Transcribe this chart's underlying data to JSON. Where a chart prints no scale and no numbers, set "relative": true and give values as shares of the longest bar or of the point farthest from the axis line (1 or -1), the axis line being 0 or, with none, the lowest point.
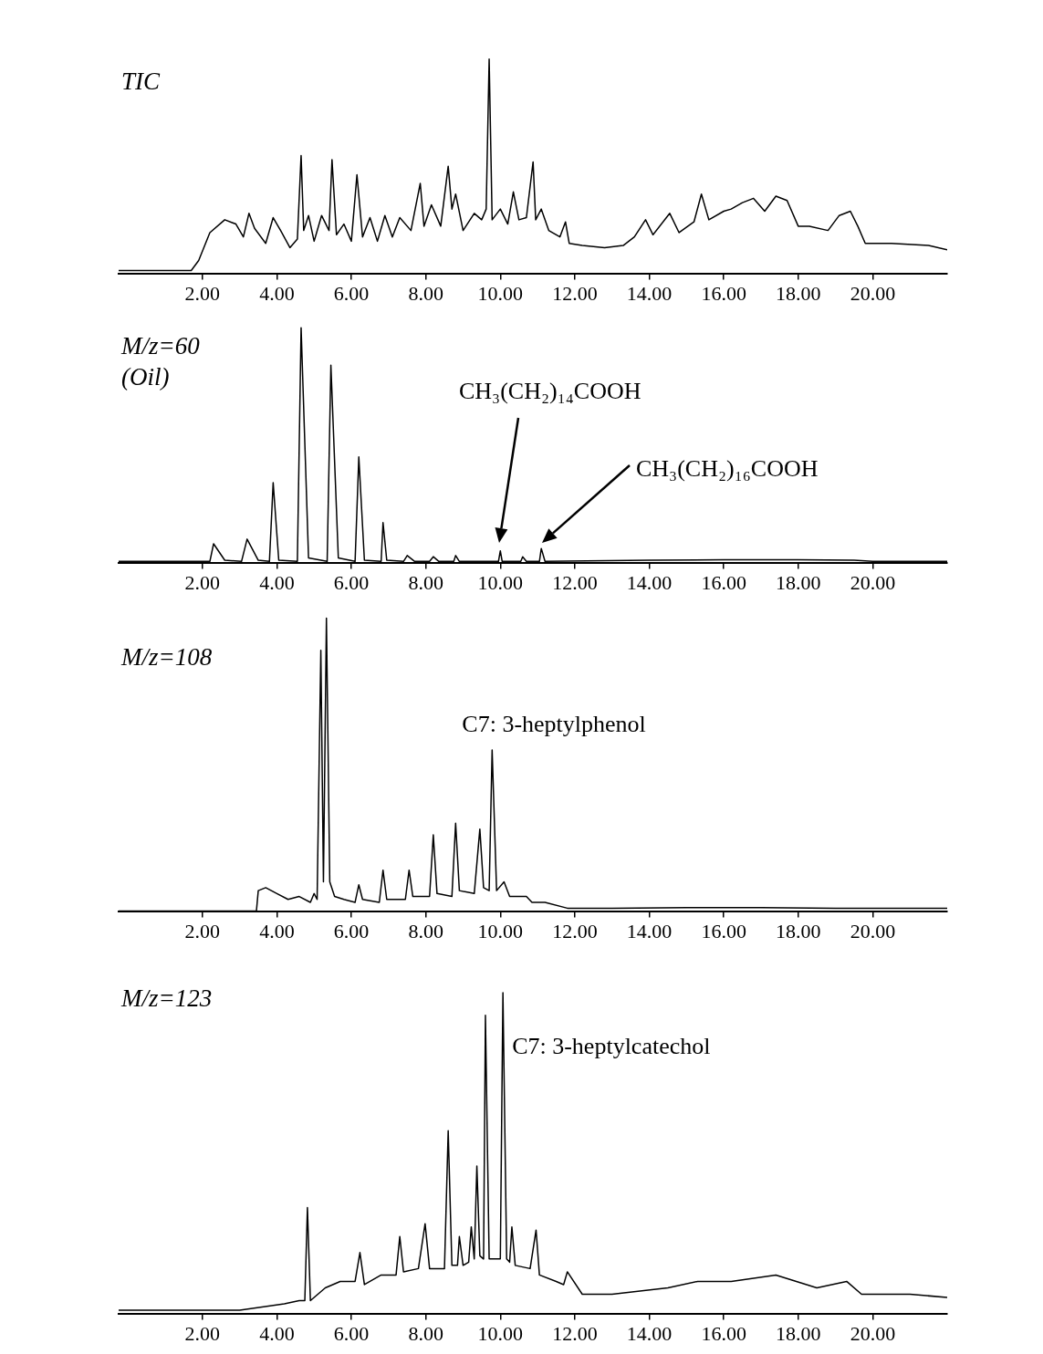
{
  "chart_data": [
    {
      "type": "line",
      "title": "TIC",
      "relative": true,
      "color": "#000000",
      "xlim": [
        -0.25,
        22
      ],
      "xticks": [
        {
          "value": 2,
          "label": "2.00"
        },
        {
          "value": 4,
          "label": "4.00"
        },
        {
          "value": 6,
          "label": "6.00"
        },
        {
          "value": 8,
          "label": "8.00"
        },
        {
          "value": 10,
          "label": "10.00"
        },
        {
          "value": 12,
          "label": "12.00"
        },
        {
          "value": 14,
          "label": "14.00"
        },
        {
          "value": 16,
          "label": "16.00"
        },
        {
          "value": 18,
          "label": "18.00"
        },
        {
          "value": 20,
          "label": "20.00"
        }
      ],
      "x": [
        -0.25,
        1.7,
        1.9,
        2.2,
        2.6,
        2.9,
        3.1,
        3.25,
        3.4,
        3.7,
        3.9,
        4.1,
        4.35,
        4.55,
        4.65,
        4.72,
        4.85,
        5.0,
        5.2,
        5.4,
        5.48,
        5.6,
        5.8,
        6.0,
        6.15,
        6.3,
        6.5,
        6.7,
        6.9,
        7.1,
        7.3,
        7.6,
        7.85,
        7.95,
        8.15,
        8.4,
        8.6,
        8.7,
        8.8,
        9.0,
        9.3,
        9.5,
        9.62,
        9.7,
        9.78,
        10.0,
        10.2,
        10.35,
        10.5,
        10.7,
        10.88,
        10.95,
        11.1,
        11.3,
        11.6,
        11.75,
        11.85,
        12.2,
        12.8,
        13.3,
        13.6,
        13.9,
        14.1,
        14.55,
        14.8,
        15.2,
        15.4,
        15.6,
        16.0,
        16.2,
        16.5,
        16.8,
        17.1,
        17.4,
        17.7,
        18.0,
        18.3,
        18.8,
        19.1,
        19.4,
        19.6,
        19.8,
        20.5,
        21.5,
        22.0
      ],
      "values": [
        0.013,
        0.013,
        0.06,
        0.19,
        0.25,
        0.23,
        0.17,
        0.28,
        0.21,
        0.14,
        0.26,
        0.2,
        0.12,
        0.16,
        0.55,
        0.2,
        0.27,
        0.15,
        0.27,
        0.2,
        0.53,
        0.18,
        0.23,
        0.15,
        0.46,
        0.17,
        0.26,
        0.15,
        0.27,
        0.17,
        0.26,
        0.2,
        0.42,
        0.22,
        0.32,
        0.22,
        0.5,
        0.3,
        0.37,
        0.2,
        0.28,
        0.25,
        0.3,
        1.0,
        0.25,
        0.3,
        0.23,
        0.38,
        0.25,
        0.26,
        0.52,
        0.25,
        0.3,
        0.2,
        0.17,
        0.24,
        0.14,
        0.13,
        0.12,
        0.13,
        0.17,
        0.25,
        0.18,
        0.28,
        0.19,
        0.24,
        0.37,
        0.25,
        0.29,
        0.3,
        0.33,
        0.35,
        0.29,
        0.36,
        0.34,
        0.22,
        0.22,
        0.2,
        0.27,
        0.29,
        0.22,
        0.14,
        0.14,
        0.13,
        0.11
      ]
    },
    {
      "type": "line",
      "title": "M/z=60",
      "subtitle": "(Oil)",
      "relative": true,
      "color": "#000000",
      "xlim": [
        -0.25,
        22
      ],
      "xticks": [
        {
          "value": 2,
          "label": "2.00"
        },
        {
          "value": 4,
          "label": "4.00"
        },
        {
          "value": 6,
          "label": "6.00"
        },
        {
          "value": 8,
          "label": "8.00"
        },
        {
          "value": 10,
          "label": "10.00"
        },
        {
          "value": 12,
          "label": "12.00"
        },
        {
          "value": 14,
          "label": "14.00"
        },
        {
          "value": 16,
          "label": "16.00"
        },
        {
          "value": 18,
          "label": "18.00"
        },
        {
          "value": 20,
          "label": "20.00"
        }
      ],
      "x": [
        -0.25,
        2.2,
        2.3,
        2.6,
        3.05,
        3.2,
        3.5,
        3.8,
        3.9,
        4.05,
        4.55,
        4.65,
        4.85,
        5.35,
        5.45,
        5.65,
        6.1,
        6.2,
        6.35,
        6.8,
        6.85,
        6.95,
        7.4,
        7.5,
        7.7,
        8.1,
        8.2,
        8.35,
        8.75,
        8.8,
        8.9,
        9.95,
        10.0,
        10.05,
        10.55,
        10.6,
        10.7,
        11.05,
        11.1,
        11.2,
        14.0,
        16.0,
        18.0,
        19.5,
        20.0,
        22.0
      ],
      "values": [
        0.005,
        0.005,
        0.08,
        0.01,
        0.005,
        0.1,
        0.01,
        0.005,
        0.34,
        0.01,
        0.005,
        1.0,
        0.02,
        0.005,
        0.84,
        0.02,
        0.005,
        0.45,
        0.01,
        0.005,
        0.17,
        0.01,
        0.005,
        0.03,
        0.005,
        0.005,
        0.025,
        0.005,
        0.005,
        0.03,
        0.005,
        0.005,
        0.05,
        0.005,
        0.005,
        0.025,
        0.005,
        0.005,
        0.06,
        0.005,
        0.01,
        0.012,
        0.012,
        0.01,
        0.005,
        0.005
      ],
      "annotations": [
        "CH₃(CH₂)₁₄COOH",
        "CH₃(CH₂)₁₆COOH"
      ]
    },
    {
      "type": "line",
      "title": "M/z=108",
      "relative": true,
      "color": "#000000",
      "xlim": [
        -0.25,
        22
      ],
      "xticks": [
        {
          "value": 2,
          "label": "2.00"
        },
        {
          "value": 4,
          "label": "4.00"
        },
        {
          "value": 6,
          "label": "6.00"
        },
        {
          "value": 8,
          "label": "8.00"
        },
        {
          "value": 10,
          "label": "10.00"
        },
        {
          "value": 12,
          "label": "12.00"
        },
        {
          "value": 14,
          "label": "14.00"
        },
        {
          "value": 16,
          "label": "16.00"
        },
        {
          "value": 18,
          "label": "18.00"
        },
        {
          "value": 20,
          "label": "20.00"
        }
      ],
      "x": [
        -0.25,
        3.45,
        3.5,
        3.7,
        4.0,
        4.3,
        4.6,
        4.9,
        5.0,
        5.08,
        5.18,
        5.25,
        5.33,
        5.42,
        5.55,
        5.8,
        6.1,
        6.2,
        6.3,
        6.75,
        6.85,
        6.95,
        7.45,
        7.55,
        7.65,
        8.1,
        8.2,
        8.3,
        8.7,
        8.8,
        8.9,
        9.3,
        9.45,
        9.55,
        9.7,
        9.78,
        9.9,
        10.1,
        10.25,
        10.4,
        10.55,
        10.7,
        10.85,
        11.2,
        11.8,
        13.0,
        15.0,
        17.0,
        19.0,
        22.0
      ],
      "values": [
        0.0,
        0.0,
        0.07,
        0.08,
        0.06,
        0.04,
        0.05,
        0.03,
        0.06,
        0.04,
        0.89,
        0.1,
        1.0,
        0.1,
        0.05,
        0.04,
        0.03,
        0.09,
        0.04,
        0.03,
        0.14,
        0.04,
        0.04,
        0.14,
        0.05,
        0.05,
        0.26,
        0.06,
        0.05,
        0.3,
        0.07,
        0.06,
        0.28,
        0.08,
        0.07,
        0.55,
        0.07,
        0.1,
        0.05,
        0.05,
        0.05,
        0.05,
        0.03,
        0.03,
        0.01,
        0.01,
        0.012,
        0.012,
        0.01,
        0.01
      ],
      "annotations": [
        {
          "text": "C7: 3-heptylphenol",
          "x": 9.78,
          "y": 0.55
        }
      ]
    },
    {
      "type": "line",
      "title": "M/z=123",
      "relative": true,
      "color": "#000000",
      "xlim": [
        -0.25,
        22
      ],
      "xticks": [
        {
          "value": 2,
          "label": "2.00"
        },
        {
          "value": 4,
          "label": "4.00"
        },
        {
          "value": 6,
          "label": "6.00"
        },
        {
          "value": 8,
          "label": "8.00"
        },
        {
          "value": 10,
          "label": "10.00"
        },
        {
          "value": 12,
          "label": "12.00"
        },
        {
          "value": 14,
          "label": "14.00"
        },
        {
          "value": 16,
          "label": "16.00"
        },
        {
          "value": 18,
          "label": "18.00"
        },
        {
          "value": 20,
          "label": "20.00"
        }
      ],
      "x": [
        -0.25,
        3.0,
        4.2,
        4.6,
        4.75,
        4.82,
        4.9,
        5.3,
        5.7,
        6.1,
        6.23,
        6.35,
        6.8,
        7.2,
        7.3,
        7.4,
        7.8,
        7.98,
        8.1,
        8.5,
        8.6,
        8.7,
        8.85,
        8.9,
        9.0,
        9.15,
        9.22,
        9.3,
        9.37,
        9.45,
        9.55,
        9.6,
        9.7,
        9.9,
        10.0,
        10.07,
        10.17,
        10.25,
        10.31,
        10.4,
        10.8,
        10.96,
        11.05,
        11.5,
        11.7,
        11.8,
        12.2,
        13.0,
        14.5,
        15.3,
        16.2,
        17.4,
        18.5,
        19.3,
        19.7,
        21.0,
        22.0
      ],
      "values": [
        0.01,
        0.01,
        0.03,
        0.04,
        0.04,
        0.33,
        0.04,
        0.08,
        0.1,
        0.1,
        0.19,
        0.09,
        0.12,
        0.12,
        0.24,
        0.13,
        0.14,
        0.28,
        0.14,
        0.14,
        0.57,
        0.15,
        0.15,
        0.24,
        0.15,
        0.16,
        0.27,
        0.17,
        0.46,
        0.18,
        0.17,
        0.93,
        0.17,
        0.17,
        0.17,
        1.0,
        0.17,
        0.16,
        0.27,
        0.15,
        0.14,
        0.26,
        0.12,
        0.1,
        0.09,
        0.13,
        0.06,
        0.06,
        0.08,
        0.1,
        0.1,
        0.12,
        0.08,
        0.1,
        0.06,
        0.06,
        0.05
      ],
      "annotations": [
        {
          "text": "C7: 3-heptylcatechol",
          "x": 10.07,
          "y": 1.0
        }
      ]
    }
  ]
}
